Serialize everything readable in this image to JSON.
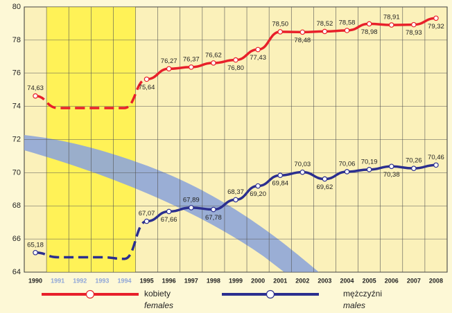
{
  "chart_data": {
    "type": "line",
    "categories": [
      "1990",
      "1991",
      "1992",
      "1993",
      "1994",
      "1995",
      "1996",
      "1997",
      "1998",
      "1999",
      "2000",
      "2001",
      "2002",
      "2003",
      "2004",
      "2005",
      "2006",
      "2007",
      "2008"
    ],
    "highlight": [
      "1991",
      "1994"
    ],
    "ylim": [
      64,
      80
    ],
    "yticks": [
      64,
      66,
      68,
      70,
      72,
      74,
      76,
      78,
      80
    ],
    "grid": true,
    "series": [
      {
        "name": "kobiety",
        "name_en": "females",
        "color": "#e8202a",
        "values": [
          74.63,
          73.9,
          73.9,
          73.9,
          73.9,
          75.64,
          76.27,
          76.37,
          76.62,
          76.8,
          77.43,
          78.5,
          78.48,
          78.52,
          78.58,
          78.98,
          78.91,
          78.93,
          79.32
        ],
        "value_labels": [
          "74,63",
          null,
          null,
          null,
          null,
          "75,64",
          "76,27",
          "76,37",
          "76,62",
          "76,80",
          "77,43",
          "78,50",
          "78,48",
          "78,52",
          "78,58",
          "78,98",
          "78,91",
          "78,93",
          "79,32"
        ]
      },
      {
        "name": "mężczyźni",
        "name_en": "males",
        "color": "#2b2f8f",
        "values": [
          65.18,
          64.9,
          64.9,
          64.9,
          64.8,
          67.07,
          67.66,
          67.89,
          67.78,
          68.37,
          69.2,
          69.84,
          70.03,
          69.62,
          70.06,
          70.19,
          70.38,
          70.26,
          70.46
        ],
        "value_labels": [
          "65,18",
          null,
          null,
          null,
          null,
          "67,07",
          "67,66",
          "67,89",
          "67,78",
          "68,37",
          "69,20",
          "69,84",
          "70,03",
          "69,62",
          "70,06",
          "70,19",
          "70,38",
          "70,26",
          "70,46"
        ]
      }
    ]
  }
}
